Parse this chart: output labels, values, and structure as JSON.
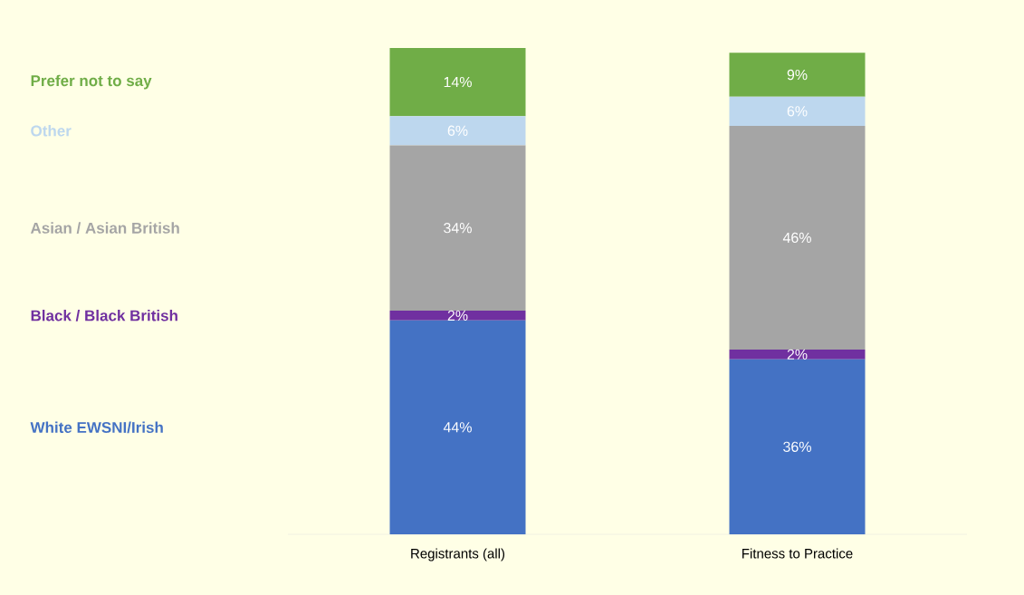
{
  "chart_data": {
    "type": "bar",
    "stacked": true,
    "legend": "left",
    "categories": [
      "Registrants (all)",
      "Fitness to Practice"
    ],
    "series": [
      {
        "name": "White EWSNI/Irish",
        "color": "#4472c4",
        "values": [
          44,
          36
        ],
        "value_labels": [
          "44%",
          "36%"
        ]
      },
      {
        "name": "Black / Black British",
        "color": "#7030a0",
        "values": [
          2,
          2
        ],
        "value_labels": [
          "2%",
          "2%"
        ]
      },
      {
        "name": "Asian / Asian British",
        "color": "#a5a5a5",
        "values": [
          34,
          46
        ],
        "value_labels": [
          "34%",
          "46%"
        ]
      },
      {
        "name": "Other",
        "color": "#bdd7ee",
        "values": [
          6,
          6
        ],
        "value_labels": [
          "6%",
          "6%"
        ]
      },
      {
        "name": "Prefer not to say",
        "color": "#70ad47",
        "values": [
          14,
          9
        ],
        "value_labels": [
          "14%",
          "9%"
        ]
      }
    ]
  }
}
